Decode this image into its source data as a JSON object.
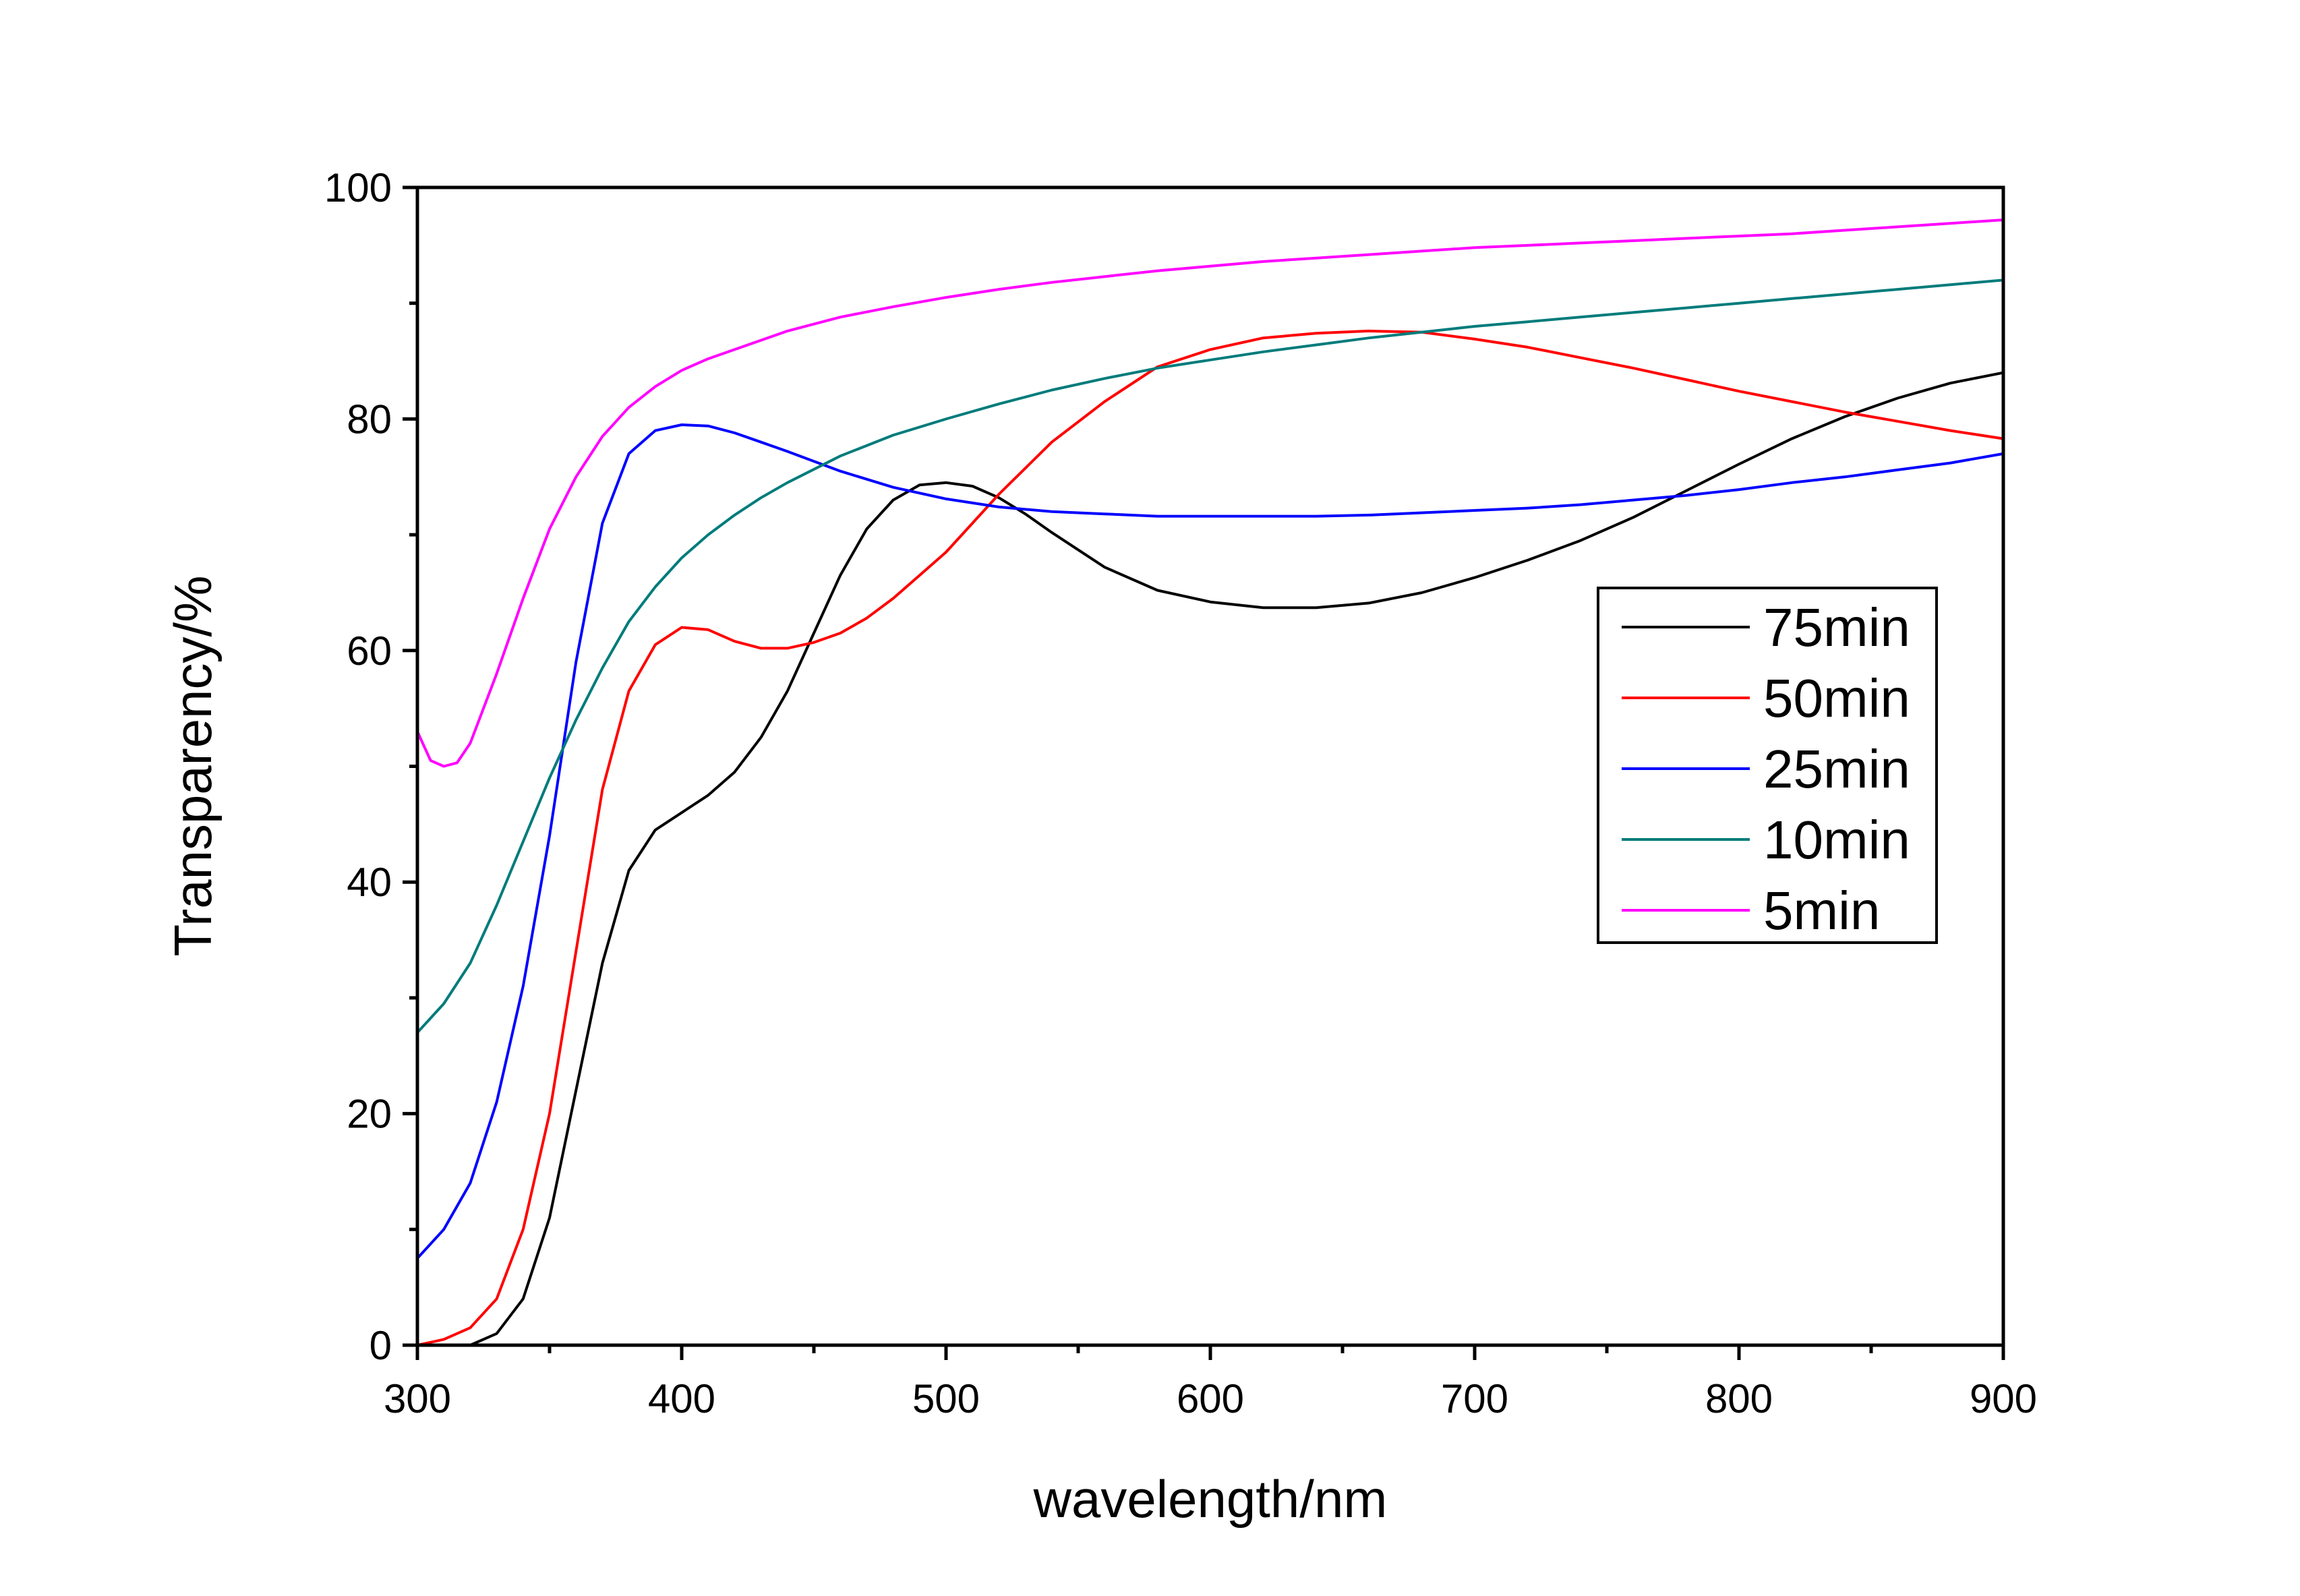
{
  "chart_data": {
    "type": "line",
    "xlabel": "wavelength/nm",
    "ylabel": "Transparency/%",
    "xlim": [
      300,
      900
    ],
    "ylim": [
      0,
      100
    ],
    "x_ticks": [
      300,
      400,
      500,
      600,
      700,
      800,
      900
    ],
    "y_ticks": [
      0,
      20,
      40,
      60,
      80,
      100
    ],
    "grid": false,
    "legend_position": "right-middle",
    "series": [
      {
        "name": "75min",
        "color": "#000000",
        "x": [
          300,
          320,
          330,
          340,
          350,
          360,
          370,
          380,
          390,
          400,
          410,
          420,
          430,
          440,
          450,
          460,
          470,
          480,
          490,
          500,
          510,
          520,
          530,
          540,
          560,
          580,
          600,
          620,
          640,
          660,
          680,
          700,
          720,
          740,
          760,
          780,
          800,
          820,
          840,
          860,
          880,
          900
        ],
        "y": [
          0,
          0,
          1,
          4,
          11,
          22,
          33,
          41,
          44.5,
          46,
          47.5,
          49.5,
          52.5,
          56.5,
          61.5,
          66.5,
          70.5,
          73,
          74.3,
          74.5,
          74.2,
          73.2,
          71.8,
          70.2,
          67.2,
          65.2,
          64.2,
          63.7,
          63.7,
          64.1,
          65,
          66.3,
          67.8,
          69.5,
          71.5,
          73.8,
          76.1,
          78.3,
          80.2,
          81.8,
          83.1,
          84
        ]
      },
      {
        "name": "50min",
        "color": "#ff0000",
        "x": [
          300,
          310,
          320,
          330,
          340,
          350,
          360,
          370,
          380,
          390,
          400,
          410,
          420,
          430,
          440,
          450,
          460,
          470,
          480,
          490,
          500,
          520,
          540,
          560,
          580,
          600,
          620,
          640,
          660,
          680,
          700,
          720,
          740,
          760,
          780,
          800,
          820,
          840,
          860,
          880,
          900
        ],
        "y": [
          0,
          0.5,
          1.5,
          4,
          10,
          20,
          34,
          48,
          56.5,
          60.5,
          62,
          61.8,
          60.8,
          60.2,
          60.2,
          60.7,
          61.5,
          62.8,
          64.5,
          66.5,
          68.5,
          73.5,
          78,
          81.5,
          84.5,
          86,
          87,
          87.4,
          87.6,
          87.5,
          86.9,
          86.2,
          85.3,
          84.4,
          83.4,
          82.4,
          81.5,
          80.6,
          79.8,
          79,
          78.3
        ]
      },
      {
        "name": "25min",
        "color": "#0000ff",
        "x": [
          300,
          310,
          320,
          330,
          340,
          350,
          360,
          370,
          380,
          390,
          400,
          410,
          420,
          430,
          440,
          460,
          480,
          500,
          520,
          540,
          560,
          580,
          600,
          620,
          640,
          660,
          680,
          700,
          720,
          740,
          760,
          780,
          800,
          820,
          840,
          860,
          880,
          900
        ],
        "y": [
          7.5,
          10,
          14,
          21,
          31,
          44,
          59,
          71,
          77,
          79,
          79.5,
          79.4,
          78.8,
          78,
          77.2,
          75.5,
          74.1,
          73.1,
          72.4,
          72,
          71.8,
          71.6,
          71.6,
          71.6,
          71.6,
          71.7,
          71.9,
          72.1,
          72.3,
          72.6,
          73,
          73.4,
          73.9,
          74.5,
          75,
          75.6,
          76.2,
          77
        ]
      },
      {
        "name": "10min",
        "color": "#007b7b",
        "x": [
          300,
          310,
          320,
          330,
          340,
          350,
          360,
          370,
          380,
          390,
          400,
          410,
          420,
          430,
          440,
          460,
          480,
          500,
          520,
          540,
          560,
          580,
          600,
          620,
          640,
          660,
          680,
          700,
          720,
          740,
          760,
          780,
          800,
          820,
          840,
          860,
          880,
          900
        ],
        "y": [
          27,
          29.5,
          33,
          38,
          43.5,
          49,
          54,
          58.5,
          62.5,
          65.5,
          68,
          70,
          71.7,
          73.2,
          74.5,
          76.8,
          78.6,
          80,
          81.3,
          82.5,
          83.5,
          84.4,
          85.1,
          85.8,
          86.4,
          87,
          87.5,
          88,
          88.4,
          88.8,
          89.2,
          89.6,
          90,
          90.4,
          90.8,
          91.2,
          91.6,
          92
        ]
      },
      {
        "name": "5min",
        "color": "#ff00ff",
        "x": [
          300,
          305,
          310,
          315,
          320,
          330,
          340,
          350,
          360,
          370,
          380,
          390,
          400,
          410,
          420,
          440,
          460,
          480,
          500,
          520,
          540,
          560,
          580,
          600,
          620,
          640,
          660,
          680,
          700,
          720,
          740,
          760,
          780,
          800,
          820,
          840,
          860,
          880,
          900
        ],
        "y": [
          53,
          50.5,
          50,
          50.3,
          52,
          58,
          64.5,
          70.5,
          75,
          78.5,
          81,
          82.8,
          84.2,
          85.2,
          86,
          87.6,
          88.8,
          89.7,
          90.5,
          91.2,
          91.8,
          92.3,
          92.8,
          93.2,
          93.6,
          93.9,
          94.2,
          94.5,
          94.8,
          95,
          95.2,
          95.4,
          95.6,
          95.8,
          96,
          96.3,
          96.6,
          96.9,
          97.2
        ]
      }
    ]
  }
}
